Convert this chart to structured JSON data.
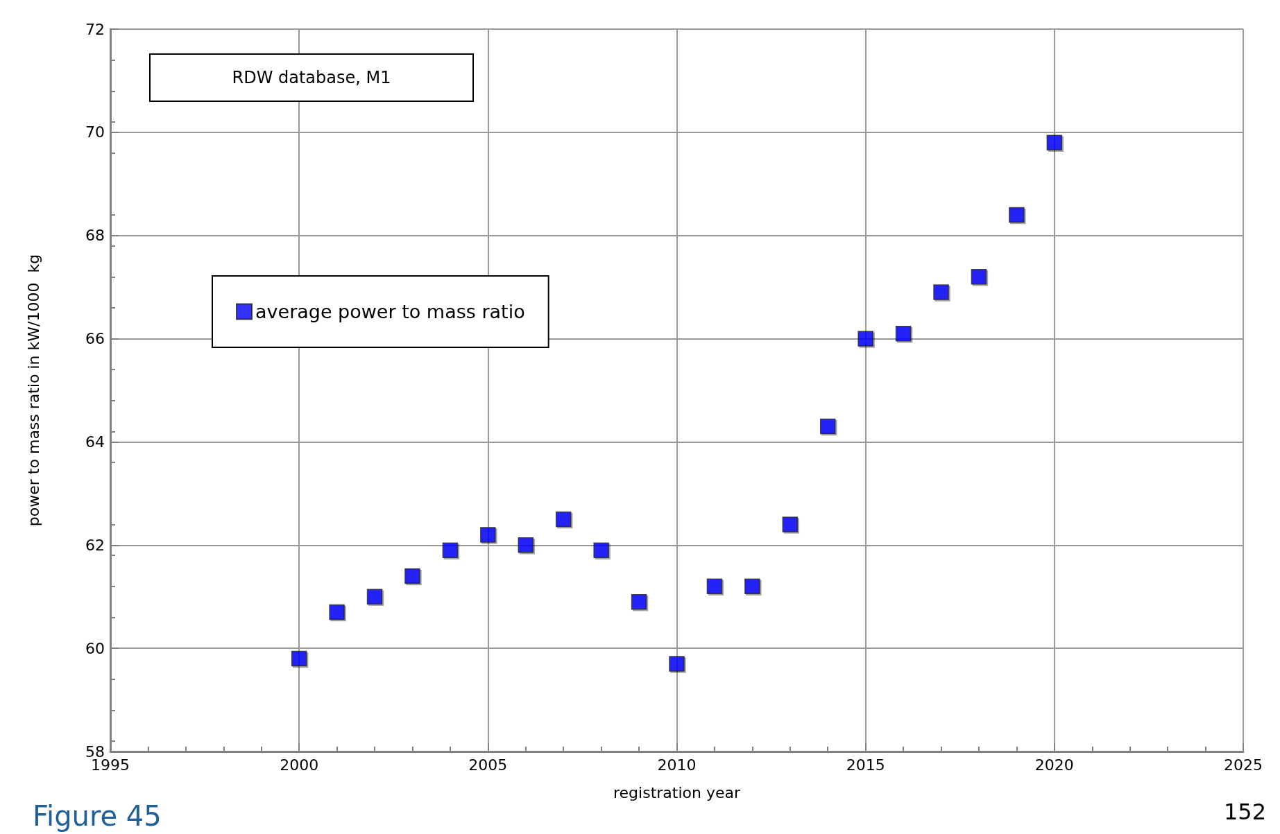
{
  "chart_data": {
    "type": "scatter",
    "xlabel": "registration year",
    "ylabel": "power to mass ratio in kW/1000  kg",
    "annotations": [
      "RDW database, M1",
      "Figure 45",
      "152"
    ],
    "x": [
      2000,
      2001,
      2002,
      2003,
      2004,
      2005,
      2006,
      2007,
      2008,
      2009,
      2010,
      2011,
      2012,
      2013,
      2014,
      2015,
      2016,
      2017,
      2018,
      2019,
      2020
    ],
    "series": [
      {
        "name": "average power to mass ratio",
        "color": "#0000ff",
        "values": [
          59.8,
          60.7,
          61.0,
          61.4,
          61.9,
          62.2,
          62.0,
          62.5,
          61.9,
          60.9,
          59.7,
          61.2,
          61.2,
          62.4,
          64.3,
          66.0,
          66.1,
          66.9,
          67.2,
          68.4,
          69.8
        ]
      }
    ],
    "xlim": [
      1995,
      2025
    ],
    "xticks": [
      1995,
      2000,
      2005,
      2010,
      2015,
      2020,
      2025
    ],
    "ylim": [
      58,
      72
    ],
    "yticks": [
      58,
      60,
      62,
      64,
      66,
      68,
      70,
      72
    ],
    "grid": true,
    "legend": "left",
    "marker": "square"
  }
}
